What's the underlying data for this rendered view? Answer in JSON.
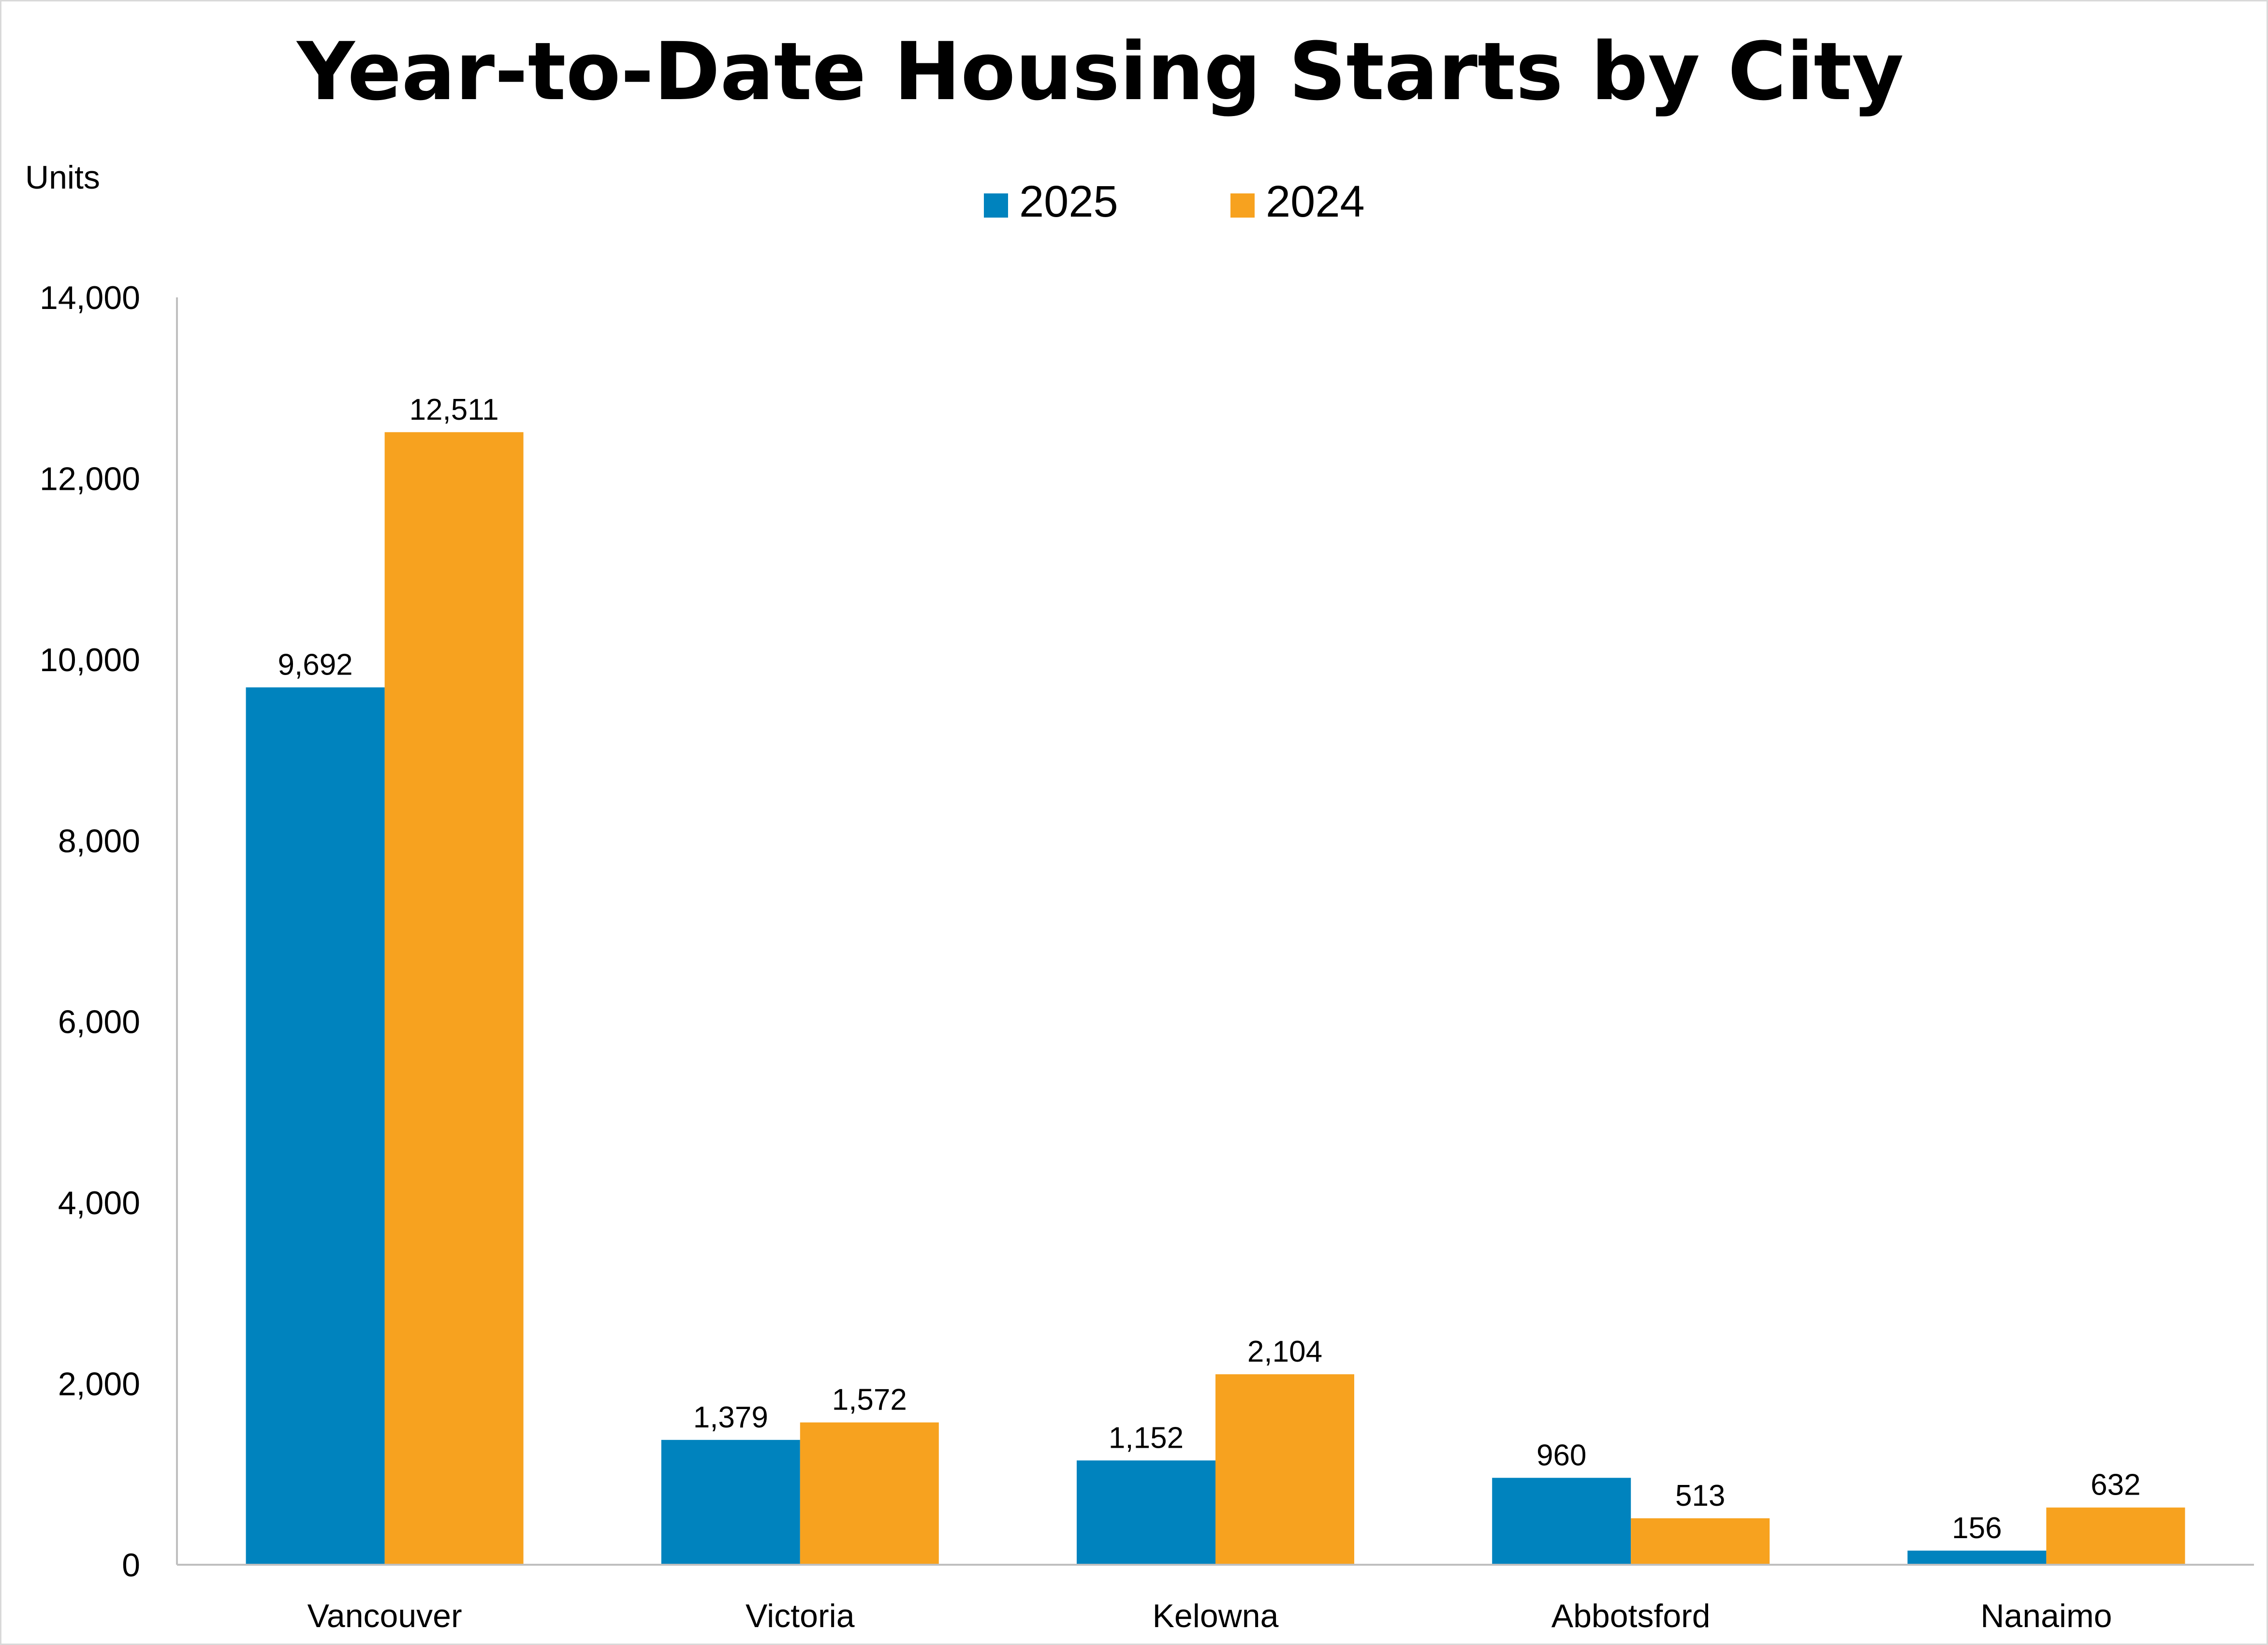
{
  "chart_data": {
    "type": "bar",
    "title": "Year-to-Date Housing Starts by City",
    "ylabel": "Units",
    "xlabel": "",
    "categories": [
      "Vancouver",
      "Victoria",
      "Kelowna",
      "Abbotsford",
      "Nanaimo"
    ],
    "series": [
      {
        "name": "2025",
        "color": "#0083BE",
        "values": [
          9692,
          1379,
          1152,
          960,
          156
        ],
        "labels": [
          "9,692",
          "1,379",
          "1,152",
          "960",
          "156"
        ]
      },
      {
        "name": "2024",
        "color": "#F7A21F",
        "values": [
          12511,
          1572,
          2104,
          513,
          632
        ],
        "labels": [
          "12,511",
          "1,572",
          "2,104",
          "513",
          "632"
        ]
      }
    ],
    "ylim": [
      0,
      14000
    ],
    "yticks": [
      0,
      2000,
      4000,
      6000,
      8000,
      10000,
      12000,
      14000
    ],
    "ytick_labels": [
      "0",
      "2,000",
      "4,000",
      "6,000",
      "8,000",
      "10,000",
      "12,000",
      "14,000"
    ],
    "grid": false,
    "legend_position": "top-center"
  }
}
